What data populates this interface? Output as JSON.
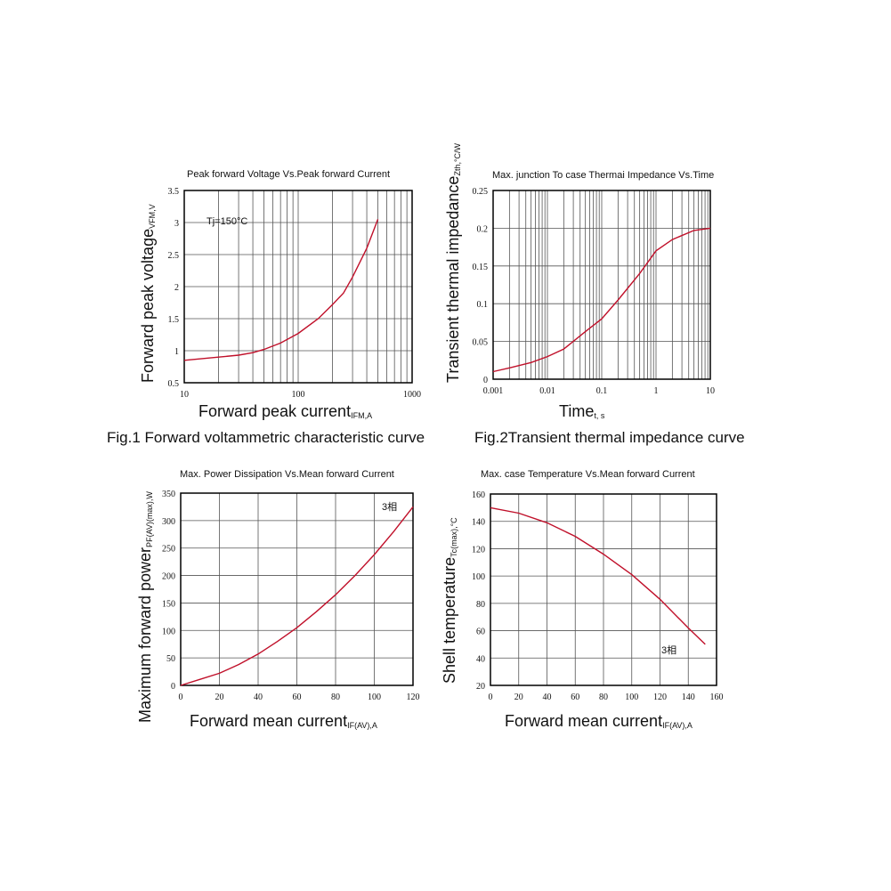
{
  "chart_data": [
    {
      "type": "line",
      "title": "Peak forward Voltage Vs.Peak forward Current",
      "xlabel": "Forward peak current",
      "xlabel_sub": "IFM,A",
      "ylabel": "Forward peak voltage",
      "ylabel_sub": "VFM,V",
      "xscale": "log",
      "xlim": [
        10,
        1000
      ],
      "ylim": [
        0.5,
        3.5
      ],
      "xticks": [
        10,
        100,
        1000
      ],
      "xtick_labels": [
        "10",
        "100",
        "1000"
      ],
      "yticks": [
        0.5,
        1,
        1.5,
        2,
        2.5,
        3,
        3.5
      ],
      "ytick_labels": [
        "0.5",
        "1",
        "1.5",
        "2",
        "2.5",
        "3",
        "3.5"
      ],
      "annotation": "Tj=150°C",
      "grid": true,
      "series": [
        {
          "name": "VFM",
          "color": "#c0102a",
          "x": [
            10,
            20,
            30,
            40,
            50,
            70,
            100,
            150,
            200,
            250,
            300,
            400,
            500
          ],
          "y": [
            0.85,
            0.9,
            0.93,
            0.97,
            1.02,
            1.12,
            1.27,
            1.5,
            1.72,
            1.9,
            2.15,
            2.6,
            3.05
          ]
        }
      ],
      "caption": "Fig.1 Forward voltammetric characteristic curve"
    },
    {
      "type": "line",
      "title": "Max. junction To case Thermai Impedance Vs.Time",
      "xlabel": "Time",
      "xlabel_sub": "t, s",
      "ylabel": "Transient thermal impedance",
      "ylabel_sub": "Zth,°C/W",
      "xscale": "log",
      "xlim": [
        0.001,
        10
      ],
      "ylim": [
        0,
        0.25
      ],
      "xticks": [
        0.001,
        0.01,
        0.1,
        1,
        10
      ],
      "xtick_labels": [
        "0.001",
        "0.01",
        "0.1",
        "1",
        "10"
      ],
      "yticks": [
        0,
        0.05,
        0.1,
        0.15,
        0.2,
        0.25
      ],
      "ytick_labels": [
        "0",
        "0.05",
        "0.1",
        "0.15",
        "0.2",
        "0.25"
      ],
      "grid": true,
      "series": [
        {
          "name": "Zth",
          "color": "#c0102a",
          "x": [
            0.001,
            0.002,
            0.005,
            0.01,
            0.02,
            0.05,
            0.1,
            0.2,
            0.5,
            1,
            2,
            5,
            10
          ],
          "y": [
            0.01,
            0.015,
            0.022,
            0.03,
            0.04,
            0.063,
            0.08,
            0.105,
            0.14,
            0.17,
            0.185,
            0.197,
            0.2
          ]
        }
      ],
      "caption": "Fig.2Transient thermal impedance curve"
    },
    {
      "type": "line",
      "title": "Max. Power Dissipation Vs.Mean forward Current",
      "xlabel": "Forward mean current",
      "xlabel_sub": "IF(AV),A",
      "ylabel": "Maximum forward power",
      "ylabel_sub": "PF(AV)(max),W",
      "xscale": "linear",
      "xlim": [
        0,
        120
      ],
      "ylim": [
        0,
        350
      ],
      "xticks": [
        0,
        20,
        40,
        60,
        80,
        100,
        120
      ],
      "xtick_labels": [
        "0",
        "20",
        "40",
        "60",
        "80",
        "100",
        "120"
      ],
      "yticks": [
        0,
        50,
        100,
        150,
        200,
        250,
        300,
        350
      ],
      "ytick_labels": [
        "0",
        "50",
        "100",
        "150",
        "200",
        "250",
        "300",
        "350"
      ],
      "annotation": "3相",
      "grid": true,
      "series": [
        {
          "name": "3相",
          "color": "#c0102a",
          "x": [
            0,
            10,
            20,
            30,
            40,
            50,
            60,
            70,
            80,
            90,
            100,
            110,
            120
          ],
          "y": [
            0,
            11,
            22,
            38,
            57,
            80,
            105,
            134,
            165,
            200,
            238,
            280,
            325
          ]
        }
      ]
    },
    {
      "type": "line",
      "title": "Max. case Temperature Vs.Mean forward Current",
      "xlabel": "Forward mean current",
      "xlabel_sub": "IF(AV),A",
      "ylabel": "Shell temperature",
      "ylabel_sub": "Tc(max),°C",
      "xscale": "linear",
      "xlim": [
        0,
        160
      ],
      "ylim": [
        20,
        160
      ],
      "xticks": [
        0,
        20,
        40,
        60,
        80,
        100,
        120,
        140,
        160
      ],
      "xtick_labels": [
        "0",
        "20",
        "40",
        "60",
        "80",
        "100",
        "120",
        "140",
        "160"
      ],
      "yticks": [
        20,
        40,
        60,
        80,
        100,
        120,
        140,
        160
      ],
      "ytick_labels": [
        "20",
        "40",
        "60",
        "80",
        "100",
        "120",
        "140",
        "160"
      ],
      "annotation": "3相",
      "grid": true,
      "series": [
        {
          "name": "3相",
          "color": "#c0102a",
          "x": [
            0,
            20,
            40,
            60,
            80,
            100,
            120,
            140,
            152
          ],
          "y": [
            150,
            146,
            139,
            129,
            116,
            101,
            83,
            62,
            50
          ]
        }
      ]
    }
  ]
}
